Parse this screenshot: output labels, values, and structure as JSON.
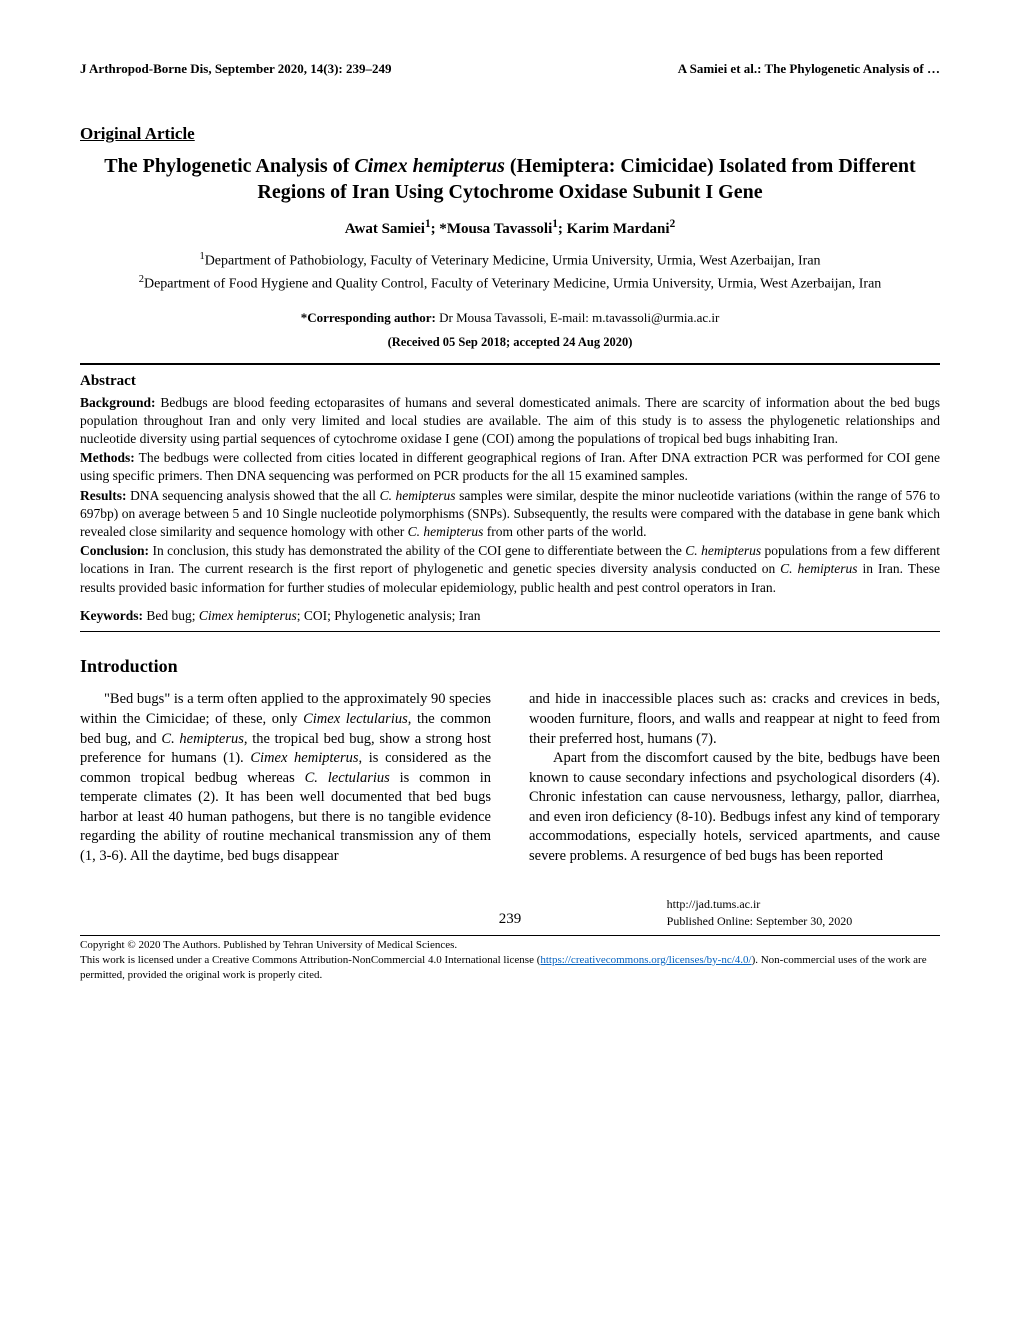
{
  "header": {
    "left": "J Arthropod-Borne Dis, September 2020, 14(3): 239–249",
    "right": "A Samiei et al.: The Phylogenetic Analysis of …"
  },
  "article_type": "Original Article",
  "title": {
    "pre": "The Phylogenetic Analysis of ",
    "species": "Cimex hemipterus",
    "post": " (Hemiptera: Cimicidae) Isolated from Different Regions of Iran Using Cytochrome Oxidase Subunit I Gene"
  },
  "authors": {
    "a1_name": "Awat Samiei",
    "a1_sup": "1",
    "sep1": "; *",
    "a2_name": "Mousa Tavassoli",
    "a2_sup": "1",
    "sep2": "; ",
    "a3_name": "Karim Mardani",
    "a3_sup": "2"
  },
  "affiliations": {
    "a1_sup": "1",
    "a1_text": "Department of Pathobiology, Faculty of Veterinary Medicine, Urmia University, Urmia, West Azerbaijan, Iran",
    "a2_sup": "2",
    "a2_text": "Department of Food Hygiene and Quality Control, Faculty of Veterinary Medicine, Urmia University, Urmia, West Azerbaijan, Iran"
  },
  "corresponding": {
    "label": "*Corresponding author:",
    "text": " Dr Mousa Tavassoli, E-mail: m.tavassoli@urmia.ac.ir"
  },
  "received": "(Received 05 Sep 2018; accepted 24 Aug 2020)",
  "abstract": {
    "heading": "Abstract",
    "background": {
      "label": "Background:",
      "text": " Bedbugs are blood feeding ectoparasites of humans and several domesticated animals. There are scarcity of information about the bed bugs population throughout Iran and only very limited and local studies are available. The aim of this study is to assess the phylogenetic relationships and nucleotide diversity using partial sequences of cytochrome oxidase I gene (COI) among the populations of tropical bed bugs inhabiting Iran."
    },
    "methods": {
      "label": "Methods:",
      "text": " The bedbugs were collected from cities located in different geographical regions of Iran. After DNA extraction PCR was performed for COI gene using specific primers. Then DNA sequencing was performed on PCR products for the all 15 examined samples."
    },
    "results": {
      "label": "Results:",
      "text_pre": " DNA sequencing analysis showed that the all ",
      "species1": "C. hemipterus",
      "text_mid": " samples were similar, despite the minor nucleotide variations (within the range of 576 to 697bp) on average between 5 and 10 Single nucleotide polymorphisms (SNPs). Subsequently, the results were compared with the database in gene bank which revealed close similarity and sequence homology with other ",
      "species2": "C. hemipterus",
      "text_post": " from other parts of the world."
    },
    "conclusion": {
      "label": "Conclusion:",
      "text_pre": " In conclusion, this study has demonstrated the ability of the COI gene to differentiate between the ",
      "species1": "C. hemipterus",
      "text_mid": " populations from a few different locations in Iran. The current research is the first report of phylogenetic and genetic species diversity analysis conducted on ",
      "species2": "C. hemipterus",
      "text_post": " in Iran. These results provided basic information for further studies of molecular epidemiology, public health and pest control operators in Iran."
    }
  },
  "keywords": {
    "label": "Keywords:",
    "pre": " Bed bug; ",
    "species": "Cimex hemipterus",
    "post": "; COI; Phylogenetic analysis; Iran"
  },
  "intro": {
    "heading": "Introduction",
    "col1": {
      "p1_pre": "\"Bed bugs\" is a term often applied to the approximately 90 species within the Cimicidae; of these, only ",
      "sp1": "Cimex lectularius",
      "p1_mid1": ", the common bed bug, and ",
      "sp2": "C. hemipterus",
      "p1_mid2": ", the tropical bed bug, show a strong host preference for humans (1). ",
      "sp3": "Cimex hemipterus",
      "p1_mid3": ", is considered as the common tropical bedbug whereas ",
      "sp4": "C. lectularius",
      "p1_post": " is common in temperate climates (2). It has been well documented that bed bugs harbor at least 40 human pathogens, but there is no tangible evidence regarding the ability of routine mechanical transmission any of them (1, 3-6). All the daytime, bed bugs disappear"
    },
    "col2": {
      "p1": "and hide in inaccessible places such as: cracks and crevices in beds, wooden furniture, floors, and walls and reappear at night to feed from their preferred host, humans (7).",
      "p2": "Apart from the discomfort caused by the bite, bedbugs have been known to cause secondary infections and psychological disorders (4). Chronic infestation can cause nervousness, lethargy, pallor, diarrhea, and even iron deficiency (8-10). Bedbugs infest any kind of temporary accommodations, especially hotels, serviced apartments, and cause severe problems. A resurgence of bed bugs has been reported"
    }
  },
  "footer": {
    "page": "239",
    "url": "http://jad.tums.ac.ir",
    "published": "Published Online: September 30, 2020",
    "copyright": "Copyright © 2020 The Authors. Published by Tehran University of Medical Sciences.",
    "license_pre": "This work is licensed under a Creative Commons Attribution-NonCommercial 4.0 International license (",
    "license_link": "https://creativecommons.org/licenses/by-nc/4.0/",
    "license_post": "). Non-commercial uses of the work are permitted, provided the original work is properly cited."
  }
}
